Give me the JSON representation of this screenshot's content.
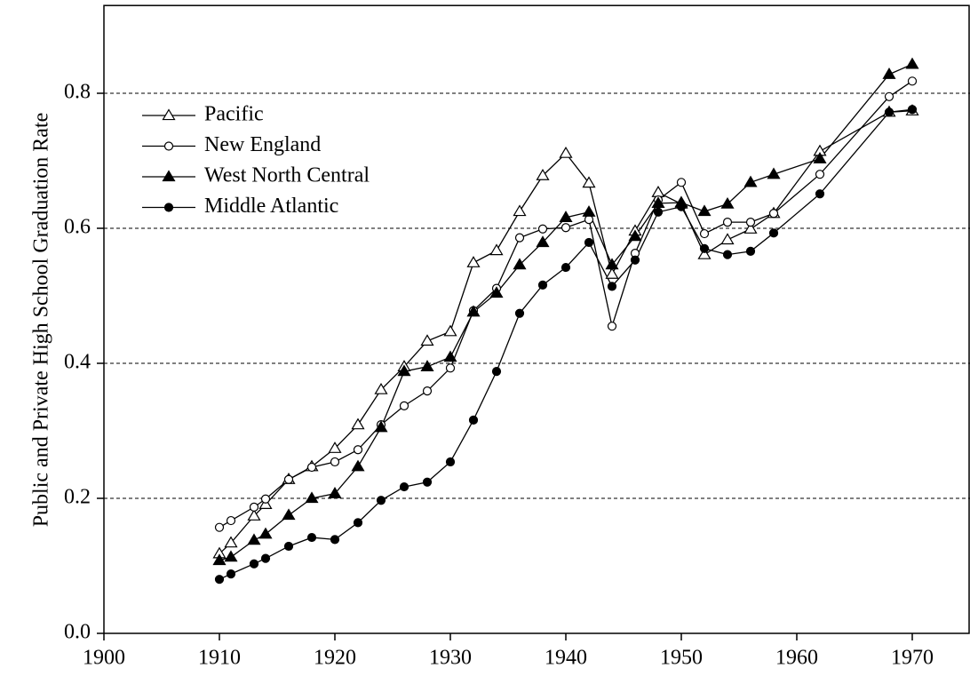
{
  "chart_data": {
    "type": "line",
    "y_label": "Public and Private High School Graduation Rate",
    "x": [
      1910,
      1911,
      1913,
      1914,
      1916,
      1918,
      1920,
      1922,
      1924,
      1926,
      1928,
      1930,
      1932,
      1934,
      1936,
      1938,
      1940,
      1942,
      1944,
      1946,
      1948,
      1950,
      1952,
      1954,
      1956,
      1958,
      1962,
      1968,
      1970
    ],
    "series": [
      {
        "name": "Pacific",
        "color": "#000000",
        "marker": "triangle-open",
        "values": [
          0.118,
          0.134,
          0.174,
          0.191,
          0.228,
          0.247,
          0.274,
          0.309,
          0.361,
          0.395,
          0.433,
          0.447,
          0.549,
          0.567,
          0.625,
          0.678,
          0.711,
          0.667,
          0.532,
          0.596,
          0.653,
          0.636,
          0.561,
          0.583,
          0.599,
          0.622,
          0.714,
          0.772,
          0.774
        ]
      },
      {
        "name": "New England",
        "color": "#000000",
        "marker": "circle-open",
        "values": [
          0.157,
          0.167,
          0.187,
          0.199,
          0.228,
          0.246,
          0.254,
          0.272,
          0.309,
          0.337,
          0.359,
          0.393,
          0.478,
          0.511,
          0.586,
          0.599,
          0.601,
          0.613,
          0.455,
          0.563,
          0.642,
          0.668,
          0.592,
          0.609,
          0.609,
          0.622,
          0.68,
          0.795,
          0.818
        ]
      },
      {
        "name": "West North Central",
        "color": "#000000",
        "marker": "triangle-filled",
        "values": [
          0.108,
          0.113,
          0.138,
          0.147,
          0.175,
          0.2,
          0.207,
          0.247,
          0.305,
          0.388,
          0.395,
          0.409,
          0.476,
          0.504,
          0.546,
          0.579,
          0.616,
          0.624,
          0.546,
          0.588,
          0.637,
          0.638,
          0.625,
          0.636,
          0.668,
          0.68,
          0.703,
          0.828,
          0.843
        ]
      },
      {
        "name": "Middle Atlantic",
        "color": "#000000",
        "marker": "circle-filled",
        "values": [
          0.08,
          0.088,
          0.103,
          0.111,
          0.129,
          0.142,
          0.139,
          0.164,
          0.197,
          0.217,
          0.224,
          0.254,
          0.316,
          0.388,
          0.474,
          0.516,
          0.542,
          0.579,
          0.514,
          0.553,
          0.624,
          0.632,
          0.57,
          0.561,
          0.566,
          0.593,
          0.651,
          0.772,
          0.776
        ]
      }
    ],
    "xlim": [
      1900,
      1975
    ],
    "xticks": [
      1900,
      1910,
      1920,
      1930,
      1940,
      1950,
      1960,
      1970
    ],
    "ylim": [
      0,
      0.93
    ],
    "yticks": [
      {
        "value": 0,
        "label": "0.0"
      },
      0.2,
      0.4,
      0.6,
      0.8
    ],
    "grid": true,
    "legend": "upper-left"
  }
}
